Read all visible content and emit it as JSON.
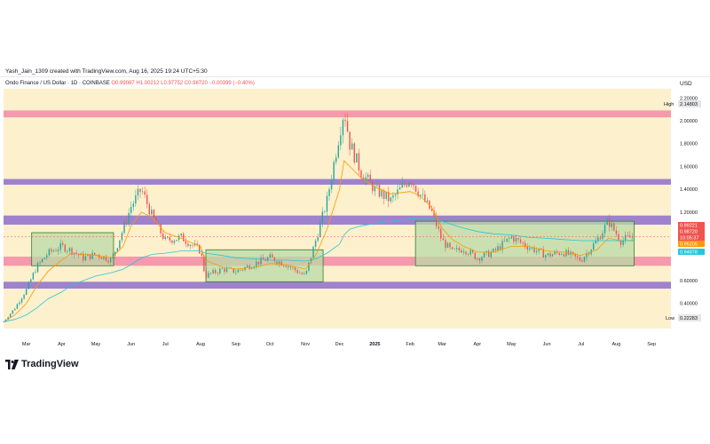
{
  "header": {
    "credit": "Yash_Jain_1309 created with TradingView.com, Aug 16, 2025 19:24 UTC+5:30"
  },
  "symbol": {
    "title": "Ondo Finance / US Dollar · 1D · COINBASE",
    "ohlc": "O0.99087  H1.00212  L0.97752  C0.98720  −0.00399 (−0.40%)"
  },
  "brand": {
    "name": "TradingView"
  },
  "chart_data": {
    "type": "candlestick",
    "currency": "USD",
    "x_tick_labels": [
      "Mar",
      "Apr",
      "May",
      "Jun",
      "Jul",
      "Aug",
      "Sep",
      "Oct",
      "Nov",
      "Dec",
      "2025",
      "Feb",
      "Mar",
      "Apr",
      "May",
      "Jun",
      "Jul",
      "Aug",
      "Sep"
    ],
    "y_ticks": [
      0.4,
      0.6,
      1.2,
      1.4,
      1.6,
      1.8,
      2.0,
      2.2
    ],
    "y_tick_labels": [
      "0.40000",
      "0.60000",
      "1.20000",
      "1.40000",
      "1.60000",
      "1.80000",
      "2.00000",
      "2.20000"
    ],
    "ylim": [
      0.18,
      2.28
    ],
    "high": {
      "label": "High",
      "value": "2.14803"
    },
    "low": {
      "label": "Low",
      "value": "0.22283"
    },
    "price_badges": [
      {
        "value": "0.99221",
        "color": "#ef5350"
      },
      {
        "value": "0.98720",
        "color": "#ef5350"
      },
      {
        "value": "10:05:37",
        "color": "#ef5350"
      },
      {
        "value": "0.95205",
        "color": "#ff9800"
      },
      {
        "value": "0.94878",
        "color": "#26c6da"
      }
    ],
    "resistance_zones": [
      {
        "low": 2.03,
        "high": 2.09,
        "color": "#f48fa8"
      },
      {
        "low": 1.44,
        "high": 1.49,
        "color": "#9575cd"
      },
      {
        "low": 1.09,
        "high": 1.17,
        "color": "#9575cd"
      },
      {
        "low": 0.73,
        "high": 0.81,
        "color": "#f48fa8"
      },
      {
        "low": 0.53,
        "high": 0.59,
        "color": "#9575cd"
      }
    ],
    "range_boxes": [
      {
        "start": "Mar 2024",
        "end": "May 2024",
        "low": 0.73,
        "high": 1.02
      },
      {
        "start": "Aug 2024",
        "end": "Nov 2024",
        "low": 0.59,
        "high": 0.87
      },
      {
        "start": "Feb 2025",
        "end": "Aug 2025",
        "low": 0.73,
        "high": 1.12
      }
    ],
    "close_path": {
      "dates": [
        "2024-02-10",
        "2024-02-20",
        "2024-03-01",
        "2024-03-10",
        "2024-03-20",
        "2024-04-01",
        "2024-04-10",
        "2024-04-20",
        "2024-05-01",
        "2024-05-15",
        "2024-05-25",
        "2024-06-01",
        "2024-06-10",
        "2024-06-20",
        "2024-07-01",
        "2024-07-15",
        "2024-08-01",
        "2024-08-05",
        "2024-08-20",
        "2024-09-01",
        "2024-09-20",
        "2024-10-01",
        "2024-10-15",
        "2024-11-01",
        "2024-11-10",
        "2024-11-20",
        "2024-12-01",
        "2024-12-05",
        "2024-12-10",
        "2024-12-20",
        "2025-01-01",
        "2025-01-15",
        "2025-02-01",
        "2025-02-10",
        "2025-02-20",
        "2025-03-01",
        "2025-03-10",
        "2025-03-20",
        "2025-04-01",
        "2025-04-15",
        "2025-05-01",
        "2025-05-15",
        "2025-06-01",
        "2025-06-15",
        "2025-07-01",
        "2025-07-15",
        "2025-07-25",
        "2025-08-05",
        "2025-08-16"
      ],
      "values": [
        0.24,
        0.36,
        0.52,
        0.72,
        0.84,
        0.9,
        0.86,
        0.8,
        0.83,
        0.78,
        1.05,
        1.25,
        1.4,
        1.15,
        0.95,
        0.98,
        0.86,
        0.64,
        0.7,
        0.68,
        0.76,
        0.8,
        0.74,
        0.64,
        0.95,
        1.3,
        1.9,
        2.1,
        1.8,
        1.55,
        1.4,
        1.3,
        1.5,
        1.35,
        1.2,
        0.95,
        0.85,
        0.88,
        0.8,
        0.85,
        0.98,
        0.9,
        0.82,
        0.85,
        0.78,
        0.95,
        1.12,
        0.95,
        0.987
      ]
    },
    "moving_averages": [
      {
        "color": "#ff9800",
        "values": [
          0.24,
          0.3,
          0.4,
          0.55,
          0.68,
          0.78,
          0.84,
          0.83,
          0.82,
          0.8,
          0.9,
          1.08,
          1.2,
          1.15,
          1.02,
          0.97,
          0.9,
          0.78,
          0.72,
          0.7,
          0.72,
          0.75,
          0.74,
          0.7,
          0.82,
          1.05,
          1.4,
          1.65,
          1.6,
          1.5,
          1.42,
          1.36,
          1.38,
          1.34,
          1.24,
          1.06,
          0.96,
          0.9,
          0.85,
          0.85,
          0.9,
          0.9,
          0.86,
          0.85,
          0.82,
          0.87,
          0.97,
          0.95,
          0.952
        ]
      },
      {
        "color": "#26c6da",
        "values": [
          0.24,
          0.26,
          0.3,
          0.36,
          0.44,
          0.5,
          0.56,
          0.6,
          0.64,
          0.67,
          0.7,
          0.74,
          0.8,
          0.83,
          0.84,
          0.86,
          0.86,
          0.84,
          0.82,
          0.8,
          0.79,
          0.78,
          0.78,
          0.77,
          0.79,
          0.84,
          0.92,
          1.0,
          1.05,
          1.08,
          1.1,
          1.12,
          1.14,
          1.15,
          1.15,
          1.12,
          1.09,
          1.06,
          1.03,
          1.01,
          1.0,
          0.98,
          0.97,
          0.96,
          0.95,
          0.95,
          0.95,
          0.95,
          0.949
        ]
      }
    ],
    "colors": {
      "up": "#26a69a",
      "down": "#ef5350",
      "background": "#fdf0cd",
      "box": "#b9dba5"
    }
  }
}
